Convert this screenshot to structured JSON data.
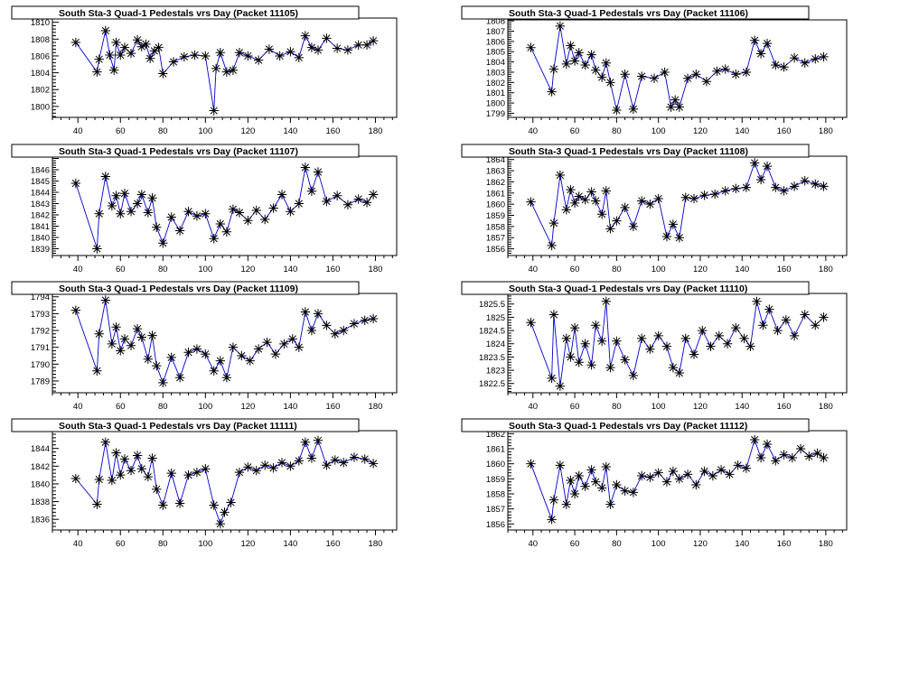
{
  "colors": {
    "series_line": "#0000cc",
    "marker": "#000000",
    "frame": "#000000",
    "background": "#ffffff"
  },
  "chart_data": [
    {
      "type": "scatter",
      "title": "South Sta-3 Quad-1 Pedestals vrs Day (Packet 11105)",
      "xlabel": "",
      "ylabel": "",
      "xlim": [
        28,
        190
      ],
      "ylim": [
        1798.7,
        1810.5
      ],
      "xticks": [
        40,
        60,
        80,
        100,
        120,
        140,
        160,
        180
      ],
      "yticks": [
        1800,
        1802,
        1804,
        1806,
        1808,
        1810
      ],
      "x": [
        39,
        49,
        50,
        53,
        55,
        57,
        58,
        60,
        62,
        65,
        68,
        70,
        72,
        74,
        76,
        78,
        80,
        85,
        90,
        95,
        100,
        104,
        105,
        107,
        110,
        113,
        116,
        120,
        125,
        130,
        135,
        140,
        144,
        147,
        150,
        153,
        157,
        162,
        167,
        172,
        176,
        179
      ],
      "y": [
        1807.6,
        1804.1,
        1805.6,
        1809.0,
        1806.1,
        1804.3,
        1807.6,
        1806.1,
        1807.0,
        1806.3,
        1807.9,
        1807.1,
        1807.4,
        1805.7,
        1806.6,
        1807.0,
        1803.9,
        1805.3,
        1805.9,
        1806.1,
        1806.0,
        1799.5,
        1804.5,
        1806.4,
        1804.1,
        1804.3,
        1806.4,
        1806.0,
        1805.5,
        1806.8,
        1806.0,
        1806.5,
        1805.8,
        1808.4,
        1807.0,
        1806.7,
        1808.1,
        1806.9,
        1806.7,
        1807.3,
        1807.3,
        1807.8
      ]
    },
    {
      "type": "scatter",
      "title": "South Sta-3 Quad-1 Pedestals vrs Day (Packet 11106)",
      "xlabel": "",
      "ylabel": "",
      "xlim": [
        28,
        190
      ],
      "ylim": [
        1798.6,
        1808.1
      ],
      "xticks": [
        40,
        60,
        80,
        100,
        120,
        140,
        160,
        180
      ],
      "yticks": [
        1799,
        1800,
        1801,
        1802,
        1803,
        1804,
        1805,
        1806,
        1807,
        1808
      ],
      "x": [
        39,
        49,
        50,
        53,
        56,
        58,
        60,
        62,
        65,
        68,
        70,
        73,
        75,
        77,
        80,
        84,
        88,
        92,
        98,
        103,
        106,
        108,
        110,
        114,
        118,
        123,
        128,
        132,
        137,
        142,
        146,
        149,
        152,
        156,
        160,
        165,
        170,
        175,
        179
      ],
      "y": [
        1805.4,
        1801.1,
        1803.3,
        1807.5,
        1803.8,
        1805.6,
        1804.1,
        1804.9,
        1803.7,
        1804.7,
        1803.2,
        1802.5,
        1803.9,
        1802.0,
        1799.3,
        1802.8,
        1799.4,
        1802.6,
        1802.4,
        1803.0,
        1799.6,
        1800.3,
        1799.6,
        1802.4,
        1802.8,
        1802.1,
        1803.1,
        1803.3,
        1802.8,
        1803.0,
        1806.1,
        1804.8,
        1805.8,
        1803.7,
        1803.5,
        1804.4,
        1803.9,
        1804.3,
        1804.5
      ]
    },
    {
      "type": "scatter",
      "title": "South Sta-3 Quad-1 Pedestals vrs Day (Packet 11107)",
      "xlabel": "",
      "ylabel": "",
      "xlim": [
        28,
        190
      ],
      "ylim": [
        1838.4,
        1847.2
      ],
      "xticks": [
        40,
        60,
        80,
        100,
        120,
        140,
        160,
        180
      ],
      "yticks": [
        1839,
        1840,
        1841,
        1842,
        1843,
        1844,
        1845,
        1846
      ],
      "x": [
        39,
        49,
        50,
        53,
        56,
        58,
        60,
        62,
        65,
        68,
        70,
        73,
        75,
        77,
        80,
        84,
        88,
        92,
        96,
        100,
        104,
        107,
        110,
        113,
        116,
        120,
        124,
        128,
        132,
        136,
        140,
        144,
        147,
        150,
        153,
        157,
        162,
        167,
        172,
        176,
        179
      ],
      "y": [
        1844.8,
        1839.0,
        1842.1,
        1845.4,
        1842.8,
        1843.7,
        1842.1,
        1843.9,
        1842.3,
        1843.0,
        1843.8,
        1842.2,
        1843.5,
        1840.9,
        1839.5,
        1841.8,
        1840.6,
        1842.3,
        1841.9,
        1842.1,
        1839.9,
        1841.2,
        1840.5,
        1842.5,
        1842.2,
        1841.5,
        1842.4,
        1841.6,
        1842.6,
        1843.8,
        1842.3,
        1843.0,
        1846.2,
        1844.1,
        1845.8,
        1843.2,
        1843.7,
        1842.9,
        1843.4,
        1843.1,
        1843.8
      ]
    },
    {
      "type": "scatter",
      "title": "South Sta-3 Quad-1 Pedestals vrs Day (Packet 11108)",
      "xlabel": "",
      "ylabel": "",
      "xlim": [
        28,
        190
      ],
      "ylim": [
        1855.4,
        1864.3
      ],
      "xticks": [
        40,
        60,
        80,
        100,
        120,
        140,
        160,
        180
      ],
      "yticks": [
        1856,
        1857,
        1858,
        1859,
        1860,
        1861,
        1862,
        1863,
        1864
      ],
      "x": [
        39,
        49,
        50,
        53,
        56,
        58,
        60,
        62,
        65,
        68,
        70,
        73,
        75,
        77,
        80,
        84,
        88,
        92,
        96,
        100,
        104,
        107,
        110,
        113,
        117,
        122,
        127,
        132,
        137,
        142,
        146,
        149,
        152,
        156,
        160,
        165,
        170,
        175,
        179
      ],
      "y": [
        1860.2,
        1856.3,
        1858.3,
        1862.6,
        1859.5,
        1861.3,
        1860.1,
        1860.7,
        1860.4,
        1861.1,
        1860.3,
        1859.1,
        1861.2,
        1857.8,
        1858.5,
        1859.7,
        1858.0,
        1860.3,
        1860.0,
        1860.5,
        1857.1,
        1858.2,
        1857.0,
        1860.6,
        1860.5,
        1860.8,
        1860.9,
        1861.2,
        1861.4,
        1861.5,
        1863.7,
        1862.2,
        1863.4,
        1861.5,
        1861.2,
        1861.6,
        1862.1,
        1861.8,
        1861.6
      ]
    },
    {
      "type": "scatter",
      "title": "South Sta-3 Quad-1 Pedestals vrs Day (Packet 11109)",
      "xlabel": "",
      "ylabel": "",
      "xlim": [
        28,
        190
      ],
      "ylim": [
        1788.3,
        1794.2
      ],
      "xticks": [
        40,
        60,
        80,
        100,
        120,
        140,
        160,
        180
      ],
      "yticks": [
        1789,
        1790,
        1791,
        1792,
        1793,
        1794
      ],
      "x": [
        39,
        49,
        50,
        53,
        56,
        58,
        60,
        62,
        65,
        68,
        70,
        73,
        75,
        77,
        80,
        84,
        88,
        92,
        96,
        100,
        104,
        107,
        110,
        113,
        117,
        121,
        125,
        129,
        133,
        137,
        141,
        144,
        147,
        150,
        153,
        157,
        161,
        165,
        170,
        175,
        179
      ],
      "y": [
        1793.2,
        1789.6,
        1791.8,
        1793.8,
        1791.2,
        1792.2,
        1790.8,
        1791.5,
        1791.1,
        1792.1,
        1791.6,
        1790.3,
        1791.7,
        1789.9,
        1788.9,
        1790.4,
        1789.2,
        1790.7,
        1790.9,
        1790.6,
        1789.6,
        1790.2,
        1789.2,
        1791.0,
        1790.5,
        1790.2,
        1790.9,
        1791.3,
        1790.6,
        1791.2,
        1791.5,
        1791.0,
        1793.1,
        1792.0,
        1793.0,
        1792.3,
        1791.8,
        1792.0,
        1792.4,
        1792.6,
        1792.7
      ]
    },
    {
      "type": "scatter",
      "title": "South Sta-3 Quad-1 Pedestals vrs Day (Packet 11110)",
      "xlabel": "",
      "ylabel": "",
      "xlim": [
        28,
        190
      ],
      "ylim": [
        1822.15,
        1825.9
      ],
      "xticks": [
        40,
        60,
        80,
        100,
        120,
        140,
        160,
        180
      ],
      "yticks": [
        1822.5,
        1823,
        1823.5,
        1824,
        1824.5,
        1825,
        1825.5
      ],
      "x": [
        39,
        49,
        50,
        53,
        56,
        58,
        60,
        62,
        65,
        68,
        70,
        73,
        75,
        77,
        80,
        84,
        88,
        92,
        96,
        100,
        104,
        107,
        110,
        113,
        117,
        121,
        125,
        129,
        133,
        137,
        141,
        144,
        147,
        150,
        153,
        157,
        161,
        165,
        170,
        175,
        179
      ],
      "y": [
        1824.8,
        1822.7,
        1825.1,
        1822.4,
        1824.2,
        1823.5,
        1824.6,
        1823.3,
        1824.0,
        1823.2,
        1824.7,
        1824.1,
        1825.6,
        1823.1,
        1824.1,
        1823.4,
        1822.8,
        1824.2,
        1823.8,
        1824.3,
        1823.9,
        1823.1,
        1822.9,
        1824.2,
        1823.6,
        1824.5,
        1823.9,
        1824.3,
        1824.0,
        1824.6,
        1824.2,
        1823.9,
        1825.6,
        1824.7,
        1825.3,
        1824.5,
        1824.9,
        1824.3,
        1825.1,
        1824.7,
        1825.0
      ]
    },
    {
      "type": "scatter",
      "title": "South Sta-3 Quad-1 Pedestals vrs Day (Packet 11111)",
      "xlabel": "",
      "ylabel": "",
      "xlim": [
        28,
        190
      ],
      "ylim": [
        1834.8,
        1846.0
      ],
      "xticks": [
        40,
        60,
        80,
        100,
        120,
        140,
        160,
        180
      ],
      "yticks": [
        1836,
        1838,
        1840,
        1842,
        1844
      ],
      "x": [
        39,
        49,
        50,
        53,
        56,
        58,
        60,
        62,
        65,
        68,
        70,
        73,
        75,
        77,
        80,
        84,
        88,
        92,
        96,
        100,
        104,
        107,
        109,
        112,
        116,
        120,
        124,
        128,
        132,
        136,
        140,
        144,
        147,
        150,
        153,
        157,
        161,
        165,
        170,
        175,
        179
      ],
      "y": [
        1840.6,
        1837.7,
        1840.5,
        1844.7,
        1840.4,
        1843.5,
        1841.0,
        1842.8,
        1841.5,
        1843.2,
        1841.7,
        1840.8,
        1842.9,
        1839.4,
        1837.6,
        1841.2,
        1837.8,
        1841.0,
        1841.3,
        1841.7,
        1837.6,
        1835.5,
        1836.8,
        1837.9,
        1841.3,
        1841.9,
        1841.5,
        1842.1,
        1841.8,
        1842.4,
        1842.0,
        1842.6,
        1844.7,
        1842.9,
        1844.9,
        1842.1,
        1842.7,
        1842.4,
        1843.0,
        1842.8,
        1842.3
      ]
    },
    {
      "type": "scatter",
      "title": "South Sta-3 Quad-1 Pedestals vrs Day (Packet 11112)",
      "xlabel": "",
      "ylabel": "",
      "xlim": [
        28,
        190
      ],
      "ylim": [
        1855.6,
        1862.2
      ],
      "xticks": [
        40,
        60,
        80,
        100,
        120,
        140,
        160,
        180
      ],
      "yticks": [
        1856,
        1857,
        1858,
        1859,
        1860,
        1861,
        1862
      ],
      "x": [
        39,
        49,
        50,
        53,
        56,
        58,
        60,
        62,
        65,
        68,
        70,
        73,
        75,
        77,
        80,
        84,
        88,
        92,
        96,
        100,
        104,
        107,
        110,
        114,
        118,
        122,
        126,
        130,
        134,
        138,
        142,
        146,
        149,
        152,
        156,
        160,
        164,
        168,
        172,
        176,
        179
      ],
      "y": [
        1860.0,
        1856.3,
        1857.6,
        1859.9,
        1857.3,
        1858.9,
        1858.0,
        1859.2,
        1858.5,
        1859.6,
        1858.8,
        1858.4,
        1859.8,
        1857.3,
        1858.6,
        1858.2,
        1858.1,
        1859.2,
        1859.1,
        1859.4,
        1858.8,
        1859.5,
        1859.0,
        1859.3,
        1858.6,
        1859.5,
        1859.2,
        1859.6,
        1859.3,
        1859.9,
        1859.7,
        1861.6,
        1860.4,
        1861.3,
        1860.2,
        1860.6,
        1860.4,
        1861.0,
        1860.5,
        1860.7,
        1860.4
      ]
    }
  ]
}
